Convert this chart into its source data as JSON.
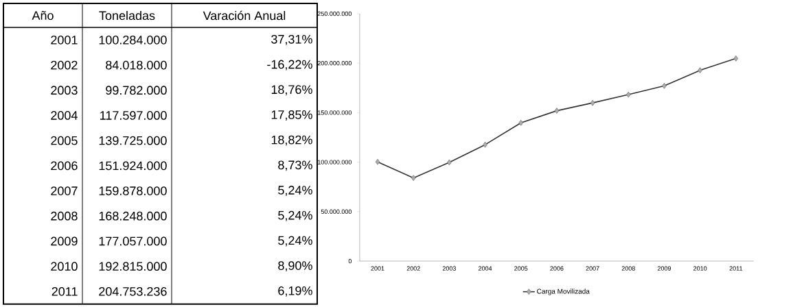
{
  "chart_data": {
    "type": "line",
    "categories": [
      "2001",
      "2002",
      "2003",
      "2004",
      "2005",
      "2006",
      "2007",
      "2008",
      "2009",
      "2010",
      "2011"
    ],
    "series": [
      {
        "name": "Carga Movilizada",
        "color": "#333333",
        "values": [
          100284000,
          84018000,
          99782000,
          117597000,
          139725000,
          151924000,
          159878000,
          168248000,
          177057000,
          192815000,
          204753236
        ]
      }
    ],
    "annotations": [
      "Año",
      "Toneladas",
      "Varación Anual",
      "2001",
      "100.284.000",
      "37,31%",
      "2002",
      "84.018.000",
      "-16,22%",
      "2003",
      "99.782.000",
      "18,76%",
      "2004",
      "117.597.000",
      "17,85%",
      "2005",
      "139.725.000",
      "18,82%",
      "2006",
      "151.924.000",
      "8,73%",
      "2007",
      "159.878.000",
      "5,24%",
      "2008",
      "168.248.000",
      "5,24%",
      "2009",
      "177.057.000",
      "5,24%",
      "2010",
      "192.815.000",
      "8,90%",
      "2011",
      "204.753.236",
      "6,19%"
    ],
    "ylim": [
      0,
      250000000
    ],
    "yticks": [
      0,
      {
        "value": 50000000,
        "label": "50.000.000"
      },
      {
        "value": 100000000,
        "label": "100.000.000"
      },
      {
        "value": 150000000,
        "label": "150.000.000"
      },
      {
        "value": 200000000,
        "label": "200.000.000"
      },
      {
        "value": 250000000,
        "label": "250.000.000"
      }
    ],
    "grid": false,
    "legend": "bottom",
    "marker": "diamond",
    "line_style": "solid"
  }
}
